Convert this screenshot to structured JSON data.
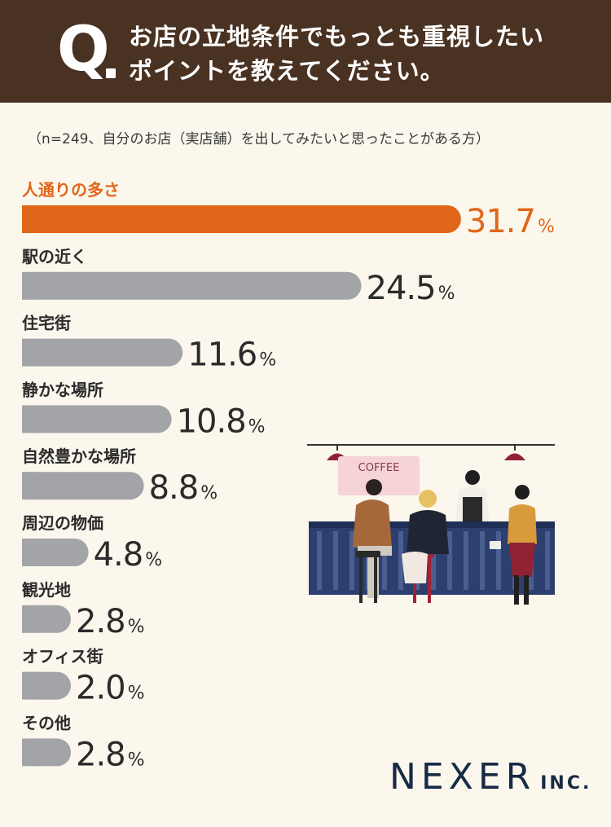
{
  "header": {
    "q_label": "Q",
    "question_line1": "お店の立地条件でもっとも重視したい",
    "question_line2": "ポイントを教えてください。"
  },
  "note": "（n=249、自分のお店（実店舗）を出してみたいと思ったことがある方）",
  "colors": {
    "header_bg": "#4a3223",
    "highlight": "#e0661a",
    "bar_gray": "#a3a4a8",
    "background": "#fbf7ec",
    "logo": "#172a46"
  },
  "chart_data": {
    "type": "bar",
    "orientation": "horizontal",
    "unit": "%",
    "categories": [
      "人通りの多さ",
      "駅の近く",
      "住宅街",
      "静かな場所",
      "自然豊かな場所",
      "周辺の物価",
      "観光地",
      "オフィス街",
      "その他"
    ],
    "values": [
      31.7,
      24.5,
      11.6,
      10.8,
      8.8,
      4.8,
      2.8,
      2.0,
      2.8
    ],
    "value_labels": [
      "31.7",
      "24.5",
      "11.6",
      "10.8",
      "8.8",
      "4.8",
      "2.8",
      "2.0",
      "2.8"
    ],
    "highlight_index": 0
  },
  "illustration": {
    "sign_text": "COFFEE"
  },
  "logo": {
    "main": "NEXER",
    "suffix": "INC."
  }
}
